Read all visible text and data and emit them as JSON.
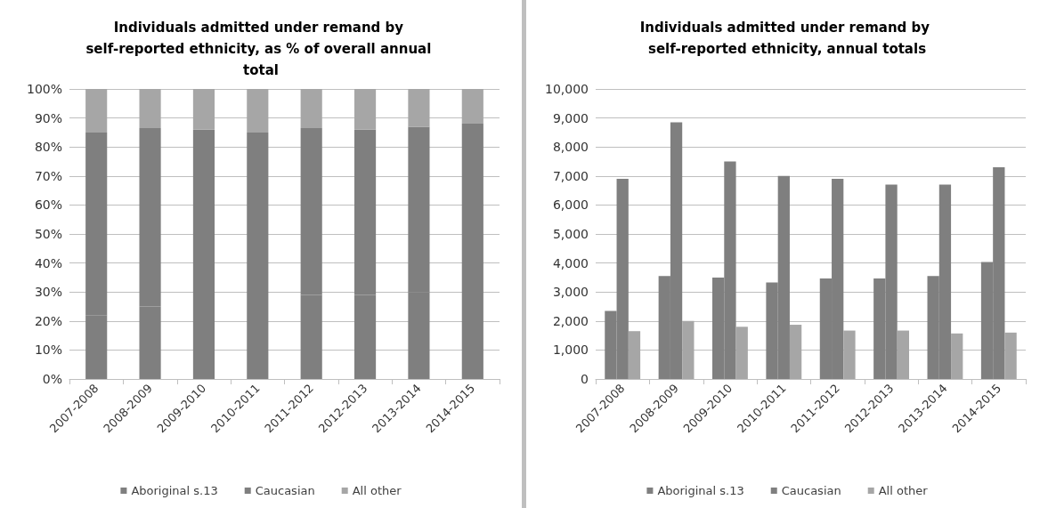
{
  "chart_data": [
    {
      "type": "bar",
      "title": "Individuals admitted under remand by self-reported ethnicity, as % of overall annual total",
      "stacked": true,
      "categories": [
        "2007-2008",
        "2008-2009",
        "2009-2010",
        "2010-2011",
        "2011-2012",
        "2012-2013",
        "2013-2014",
        "2014-2015"
      ],
      "series": [
        {
          "name": "Aboriginal s.13",
          "color": "#7f7f7f",
          "values": [
            22,
            25,
            27,
            27,
            29,
            29,
            30,
            31
          ]
        },
        {
          "name": "Caucasian",
          "color": "#7f7f7f",
          "values": [
            63,
            61.5,
            59,
            58,
            57.5,
            57,
            57,
            57
          ]
        },
        {
          "name": "All other",
          "color": "#a6a6a6",
          "values": [
            15,
            13.5,
            14,
            15,
            13.5,
            14,
            13,
            12
          ]
        }
      ],
      "ylim": [
        0,
        100
      ],
      "yticks": [
        {
          "value": 0,
          "label": "0%"
        },
        {
          "value": 10,
          "label": "10%"
        },
        {
          "value": 20,
          "label": "20%"
        },
        {
          "value": 30,
          "label": "30%"
        },
        {
          "value": 40,
          "label": "40%"
        },
        {
          "value": 50,
          "label": "50%"
        },
        {
          "value": 60,
          "label": "60%"
        },
        {
          "value": 70,
          "label": "70%"
        },
        {
          "value": 80,
          "label": "80%"
        },
        {
          "value": 90,
          "label": "90%"
        },
        {
          "value": 100,
          "label": "100%"
        }
      ],
      "grid": "y",
      "legend": "bottom"
    },
    {
      "type": "bar",
      "title": "Individuals admitted under remand by self-reported ethnicity, annual totals",
      "categories": [
        "2007-2008",
        "2008-2009",
        "2009-2010",
        "2010-2011",
        "2011-2012",
        "2012-2013",
        "2013-2014",
        "2014-2015"
      ],
      "series": [
        {
          "name": "Aboriginal s.13",
          "color": "#7f7f7f",
          "values": [
            2350,
            3550,
            3500,
            3330,
            3470,
            3470,
            3550,
            4030
          ]
        },
        {
          "name": "Caucasian",
          "color": "#7f7f7f",
          "values": [
            6900,
            8850,
            7500,
            7000,
            6900,
            6700,
            6700,
            7300
          ]
        },
        {
          "name": "All other",
          "color": "#a6a6a6",
          "values": [
            1650,
            2000,
            1800,
            1870,
            1670,
            1670,
            1570,
            1600
          ]
        }
      ],
      "ylim": [
        0,
        10000
      ],
      "yticks": [
        0,
        {
          "value": 1000,
          "label": "1,000"
        },
        {
          "value": 2000,
          "label": "2,000"
        },
        {
          "value": 3000,
          "label": "3,000"
        },
        {
          "value": 4000,
          "label": "4,000"
        },
        {
          "value": 5000,
          "label": "5,000"
        },
        {
          "value": 6000,
          "label": "6,000"
        },
        {
          "value": 7000,
          "label": "7,000"
        },
        {
          "value": 8000,
          "label": "8,000"
        },
        {
          "value": 9000,
          "label": "9,000"
        },
        {
          "value": 10000,
          "label": "10,000"
        }
      ],
      "grid": "y",
      "legend": "bottom"
    }
  ]
}
